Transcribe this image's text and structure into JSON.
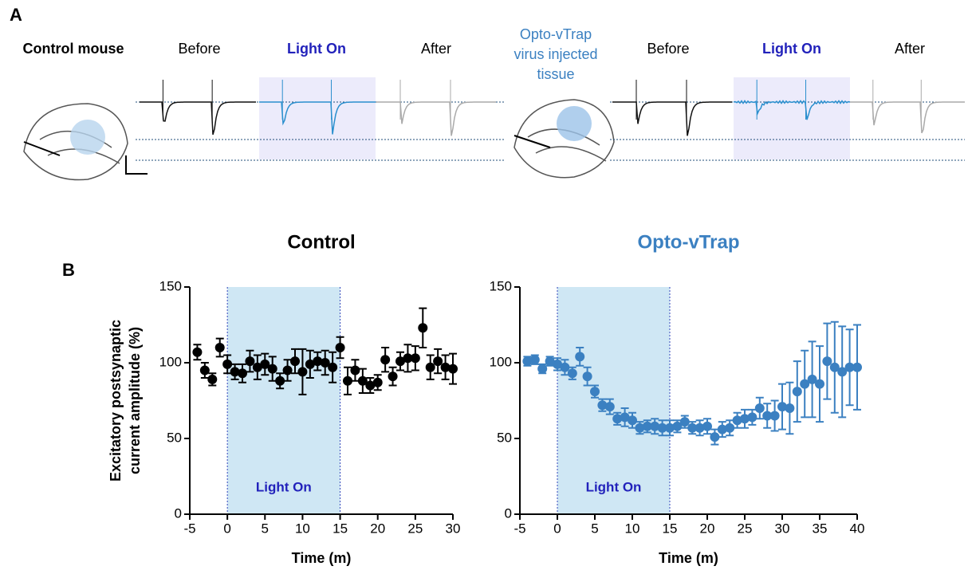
{
  "panel_a": {
    "letter": "A",
    "left": {
      "label": "Control mouse",
      "before": "Before",
      "light": "Light On",
      "after": "After"
    },
    "right": {
      "label": [
        "Opto-vTrap",
        "virus injected",
        "tissue"
      ],
      "before": "Before",
      "light": "Light On",
      "after": "After"
    }
  },
  "panel_b": {
    "letter": "B"
  },
  "chart_data": [
    {
      "type": "scatter",
      "title": "Control",
      "title_color": "#000000",
      "color": "#000000",
      "xlabel": "Time (m)",
      "ylabel": [
        "Excitatory postsynaptic",
        "current amplitude  (%)"
      ],
      "x": [
        -4,
        -3,
        -2,
        -1,
        0,
        1,
        2,
        3,
        4,
        5,
        6,
        7,
        8,
        9,
        10,
        11,
        12,
        13,
        14,
        15,
        16,
        17,
        18,
        19,
        20,
        21,
        22,
        23,
        24,
        25,
        26,
        27,
        28,
        29,
        30
      ],
      "values": [
        107,
        95,
        89,
        110,
        99,
        94,
        93,
        101,
        97,
        99,
        96,
        88,
        95,
        101,
        94,
        99,
        101,
        100,
        97,
        110,
        88,
        95,
        88,
        85,
        87,
        102,
        91,
        101,
        103,
        103,
        123,
        97,
        101,
        97,
        96
      ],
      "errors": [
        5,
        5,
        4,
        6,
        6,
        5,
        6,
        7,
        8,
        7,
        8,
        5,
        7,
        8,
        15,
        9,
        6,
        8,
        10,
        7,
        9,
        7,
        8,
        5,
        5,
        8,
        6,
        6,
        9,
        8,
        13,
        8,
        8,
        8,
        10
      ],
      "xlim": [
        -5,
        30
      ],
      "xticks": [
        -5,
        0,
        5,
        10,
        15,
        20,
        25,
        30
      ],
      "ylim": [
        0,
        150
      ],
      "yticks": [
        0,
        50,
        100,
        150
      ],
      "highlight": {
        "xlim": [
          0,
          15
        ],
        "label": "Light On",
        "color": "#cfe7f4"
      }
    },
    {
      "type": "scatter",
      "title": "Opto-vTrap",
      "title_color": "#3b80c1",
      "color": "#3b80c1",
      "xlabel": "Time (m)",
      "x": [
        -4,
        -3,
        -2,
        -1,
        0,
        1,
        2,
        3,
        4,
        5,
        6,
        7,
        8,
        9,
        10,
        11,
        12,
        13,
        14,
        15,
        16,
        17,
        18,
        19,
        20,
        21,
        22,
        23,
        24,
        25,
        26,
        27,
        28,
        29,
        30,
        31,
        32,
        33,
        34,
        35,
        36,
        37,
        38,
        39,
        40
      ],
      "values": [
        101,
        102,
        96,
        101,
        99,
        97,
        93,
        104,
        91,
        81,
        72,
        71,
        63,
        64,
        62,
        57,
        58,
        58,
        57,
        57,
        58,
        61,
        57,
        57,
        58,
        51,
        56,
        57,
        62,
        63,
        64,
        70,
        65,
        65,
        71,
        70,
        81,
        86,
        89,
        86,
        101,
        97,
        94,
        97,
        97
      ],
      "errors": [
        3,
        3,
        3,
        3,
        4,
        5,
        4,
        6,
        6,
        4,
        4,
        5,
        4,
        6,
        5,
        4,
        4,
        5,
        5,
        5,
        4,
        4,
        4,
        5,
        5,
        5,
        5,
        5,
        5,
        6,
        5,
        7,
        8,
        10,
        15,
        17,
        20,
        22,
        25,
        25,
        25,
        30,
        30,
        25,
        28
      ],
      "xlim": [
        -5,
        40
      ],
      "xticks": [
        -5,
        0,
        5,
        10,
        15,
        20,
        25,
        30,
        35,
        40
      ],
      "ylim": [
        0,
        150
      ],
      "yticks": [
        0,
        50,
        100,
        150
      ],
      "highlight": {
        "xlim": [
          0,
          15
        ],
        "label": "Light On",
        "color": "#cfe7f4"
      }
    }
  ]
}
